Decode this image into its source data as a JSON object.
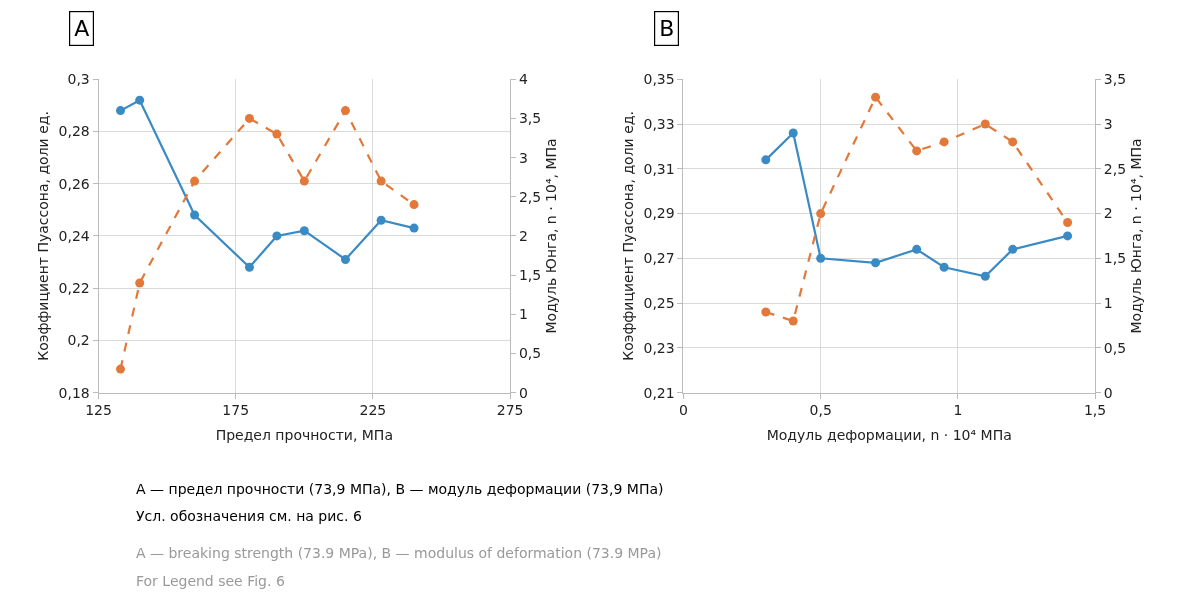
{
  "chart_data": [
    {
      "type": "line",
      "title": "A",
      "xlabel": "Предел прочности, МПа",
      "ylabel": "Коэффициент Пуассона, доли ед.",
      "y2label": "Модуль Юнга, n · 10⁴, МПа",
      "x": [
        133,
        140,
        160,
        180,
        190,
        200,
        215,
        228,
        240
      ],
      "series": [
        {
          "color": "#3a8ac4",
          "line_style": "solid",
          "values": [
            0.288,
            0.292,
            0.248,
            0.228,
            0.24,
            0.242,
            0.231,
            0.246,
            0.243
          ]
        },
        {
          "color": "#e2793a",
          "line_style": "dashed",
          "axis": "y2",
          "values": [
            0.3,
            1.4,
            2.7,
            3.5,
            3.3,
            2.7,
            3.6,
            2.7,
            2.4
          ]
        }
      ],
      "xlim": [
        125,
        275
      ],
      "xticks": [
        125,
        175,
        225,
        275
      ],
      "ylim": [
        0.18,
        0.3
      ],
      "yticks": [
        {
          "value": 0.18,
          "label": "0,18"
        },
        {
          "value": 0.2,
          "label": "0,2"
        },
        {
          "value": 0.22,
          "label": "0,22"
        },
        {
          "value": 0.24,
          "label": "0,24"
        },
        {
          "value": 0.26,
          "label": "0,26"
        },
        {
          "value": 0.28,
          "label": "0,28"
        },
        {
          "value": 0.3,
          "label": "0,3"
        }
      ],
      "y2lim": [
        0,
        4
      ],
      "y2ticks": [
        0,
        {
          "value": 0.5,
          "label": "0,5"
        },
        1,
        {
          "value": 1.5,
          "label": "1,5"
        },
        2,
        {
          "value": 2.5,
          "label": "2,5"
        },
        3,
        {
          "value": 3.5,
          "label": "3,5"
        },
        4
      ],
      "grid": true,
      "marker": "circle",
      "annotations": [
        "А — предел прочности (73,9 МПа), В — модуль деформации (73,9 МПа)",
        "Усл. обозначения см. на рис. 6",
        "A — breaking strength (73.9 MPa), B — modulus of deformation (73.9 MPa)",
        "For Legend see Fig. 6"
      ]
    },
    {
      "type": "line",
      "title": "B",
      "xlabel": "Модуль деформации, n · 10⁴ МПа",
      "ylabel": "Коэффициент Пуассона, доли ед.",
      "y2label": "Модуль Юнга, n · 10⁴, МПа",
      "x": [
        0.3,
        0.4,
        0.5,
        0.7,
        0.85,
        0.95,
        1.1,
        1.2,
        1.4
      ],
      "series": [
        {
          "color": "#3a8ac4",
          "line_style": "solid",
          "values": [
            0.314,
            0.326,
            0.27,
            0.268,
            0.274,
            0.266,
            0.262,
            0.274,
            0.28
          ]
        },
        {
          "color": "#e2793a",
          "line_style": "dashed",
          "axis": "y2",
          "values": [
            0.9,
            0.8,
            2.0,
            3.3,
            2.7,
            2.8,
            3.0,
            2.8,
            1.9
          ]
        }
      ],
      "xlim": [
        0,
        1.5
      ],
      "xticks": [
        0,
        {
          "value": 0.5,
          "label": "0,5"
        },
        1,
        {
          "value": 1.5,
          "label": "1,5"
        }
      ],
      "ylim": [
        0.21,
        0.35
      ],
      "yticks": [
        {
          "value": 0.21,
          "label": "0,21"
        },
        {
          "value": 0.23,
          "label": "0,23"
        },
        {
          "value": 0.25,
          "label": "0,25"
        },
        {
          "value": 0.27,
          "label": "0,27"
        },
        {
          "value": 0.29,
          "label": "0,29"
        },
        {
          "value": 0.31,
          "label": "0,31"
        },
        {
          "value": 0.33,
          "label": "0,33"
        },
        {
          "value": 0.35,
          "label": "0,35"
        }
      ],
      "y2lim": [
        0,
        3.5
      ],
      "y2ticks": [
        0,
        {
          "value": 0.5,
          "label": "0,5"
        },
        1,
        {
          "value": 1.5,
          "label": "1,5"
        },
        2,
        {
          "value": 2.5,
          "label": "2,5"
        },
        3,
        {
          "value": 3.5,
          "label": "3,5"
        }
      ],
      "grid": true,
      "marker": "circle"
    }
  ]
}
